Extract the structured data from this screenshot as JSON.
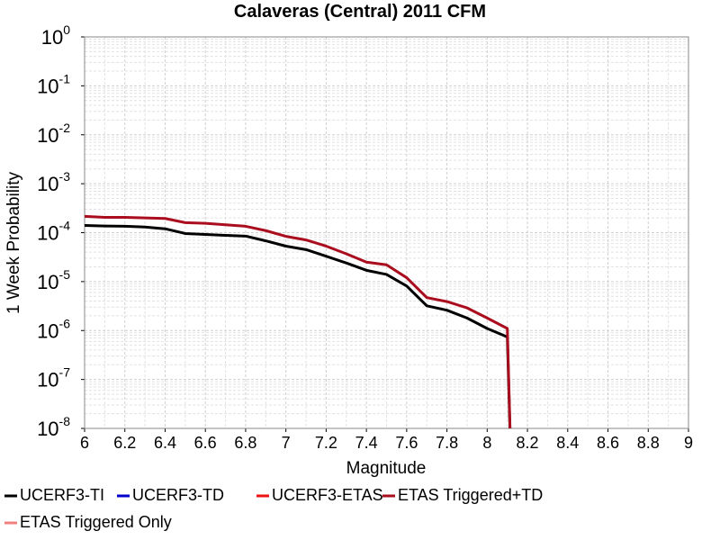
{
  "chart_data": {
    "type": "line",
    "title": "Calaveras (Central) 2011 CFM",
    "x_label": "Magnitude",
    "y_label": "1 Week Probability",
    "log_y": true,
    "grid": true,
    "legend": "bottom",
    "x": [
      6.0,
      6.1,
      6.2,
      6.3,
      6.4,
      6.5,
      6.6,
      6.7,
      6.8,
      6.9,
      7.0,
      7.1,
      7.2,
      7.3,
      7.4,
      7.5,
      7.6,
      7.7,
      7.8,
      7.9,
      8.0,
      8.1,
      8.12
    ],
    "series": [
      {
        "name": "UCERF3-TI",
        "color": "#000000",
        "values": [
          0.00014,
          0.000137,
          0.000135,
          0.00013,
          0.00012,
          9.6e-05,
          9.2e-05,
          8.8e-05,
          8.5e-05,
          6.8e-05,
          5.3e-05,
          4.5e-05,
          3.3e-05,
          2.4e-05,
          1.7e-05,
          1.4e-05,
          8.1e-06,
          3.2e-06,
          2.6e-06,
          1.8e-06,
          1.1e-06,
          7.4e-07,
          1e-09
        ]
      },
      {
        "name": "UCERF3-TD",
        "color": "#0000cc",
        "values": [
          null,
          null,
          null,
          null,
          null,
          null,
          null,
          null,
          null,
          null,
          null,
          null,
          null,
          null,
          null,
          null,
          null,
          null,
          null,
          null,
          null,
          null,
          null
        ]
      },
      {
        "name": "UCERF3-ETAS",
        "color": "#ee1111",
        "values": [
          null,
          null,
          null,
          null,
          null,
          null,
          null,
          null,
          null,
          null,
          null,
          null,
          null,
          null,
          null,
          null,
          null,
          null,
          null,
          null,
          null,
          null,
          null
        ]
      },
      {
        "name": "ETAS Triggered+TD",
        "color": "#aa0e1e",
        "values": [
          0.000215,
          0.000205,
          0.000205,
          0.0002,
          0.000195,
          0.00016,
          0.000155,
          0.000145,
          0.000135,
          0.00011,
          8.4e-05,
          7.1e-05,
          5.3e-05,
          3.7e-05,
          2.5e-05,
          2.2e-05,
          1.2e-05,
          4.7e-06,
          3.9e-06,
          2.9e-06,
          1.8e-06,
          1.1e-06,
          1e-09
        ]
      },
      {
        "name": "ETAS Triggered Only",
        "color": "#f08080",
        "values": [
          null,
          null,
          null,
          null,
          null,
          null,
          null,
          null,
          null,
          null,
          null,
          null,
          null,
          null,
          null,
          null,
          null,
          null,
          null,
          null,
          null,
          null,
          null
        ]
      }
    ],
    "xlim": [
      6,
      9
    ],
    "xticks": [
      6,
      6.2,
      6.4,
      6.6,
      6.8,
      7,
      7.2,
      7.4,
      7.6,
      7.8,
      8,
      8.2,
      8.4,
      8.6,
      8.8,
      9
    ],
    "ylim": [
      1e-08,
      1
    ],
    "yticks": [
      {
        "value": 1e-08,
        "label": "10",
        "exponent": "-8"
      },
      {
        "value": 1e-07,
        "label": "10",
        "exponent": "-7"
      },
      {
        "value": 1e-06,
        "label": "10",
        "exponent": "-6"
      },
      {
        "value": 1e-05,
        "label": "10",
        "exponent": "-5"
      },
      {
        "value": 0.0001,
        "label": "10",
        "exponent": "-4"
      },
      {
        "value": 0.001,
        "label": "10",
        "exponent": "-3"
      },
      {
        "value": 0.01,
        "label": "10",
        "exponent": "-2"
      },
      {
        "value": 0.1,
        "label": "10",
        "exponent": "-1"
      },
      {
        "value": 1,
        "label": "10",
        "exponent": "0"
      }
    ]
  }
}
